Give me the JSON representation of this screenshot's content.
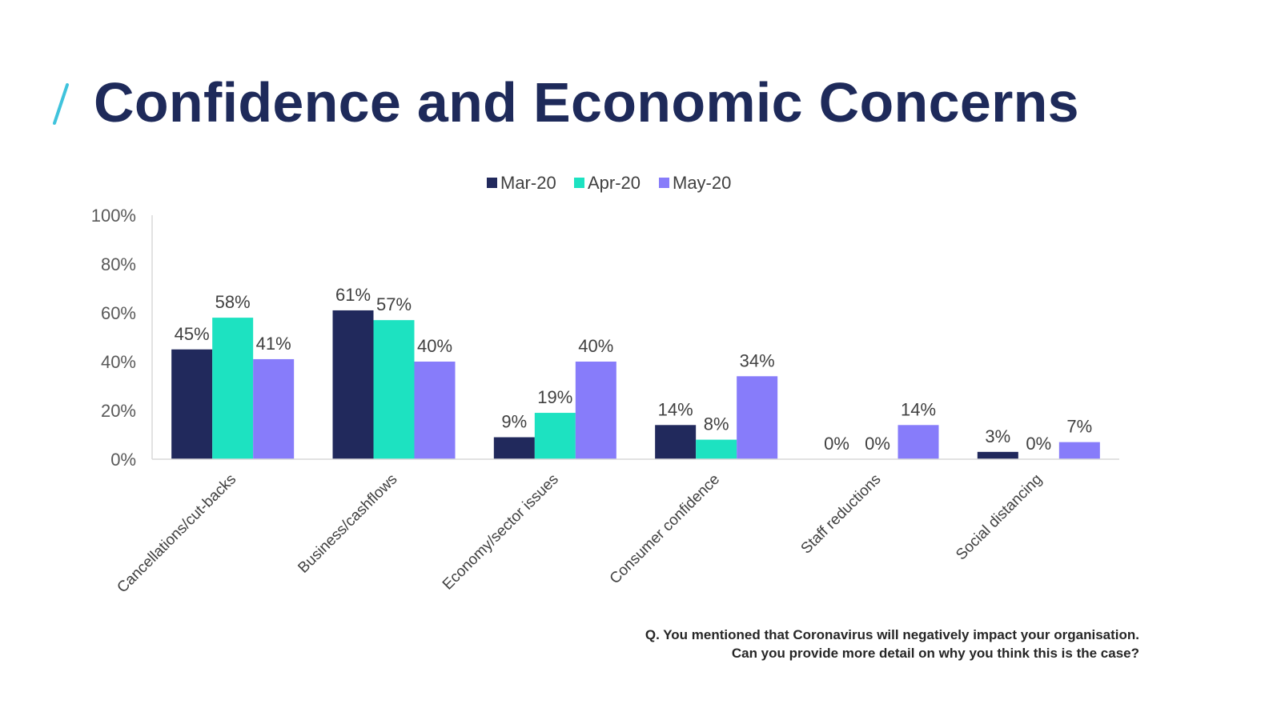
{
  "title": "Confidence and Economic Concerns",
  "footnote": {
    "line1": "Q. You mentioned that Coronavirus will negatively impact your organisation.",
    "line2": "Can you provide more detail on why you think this is the case?"
  },
  "colors": {
    "title": "#1e2a5a",
    "accent": "#3fc3dc"
  },
  "chart_data": {
    "type": "bar",
    "title": "",
    "xlabel": "",
    "ylabel": "",
    "ylim": [
      0,
      100
    ],
    "yticks": [
      "0%",
      "20%",
      "40%",
      "60%",
      "80%",
      "100%"
    ],
    "ytick_values": [
      0,
      20,
      40,
      60,
      80,
      100
    ],
    "legend_position": "top",
    "categories": [
      "Cancellations/cut-backs",
      "Business/cashflows",
      "Economy/sector issues",
      "Consumer confidence",
      "Staff reductions",
      "Social distancing"
    ],
    "series": [
      {
        "name": "Mar-20",
        "color": "#21295c",
        "values": [
          45,
          61,
          9,
          14,
          0,
          3
        ],
        "labels": [
          "45%",
          "61%",
          "9%",
          "14%",
          "0%",
          "3%"
        ]
      },
      {
        "name": "Apr-20",
        "color": "#1de2c1",
        "values": [
          58,
          57,
          19,
          8,
          0,
          0
        ],
        "labels": [
          "58%",
          "57%",
          "19%",
          "8%",
          "0%",
          "0%"
        ]
      },
      {
        "name": "May-20",
        "color": "#877cfa",
        "values": [
          41,
          40,
          40,
          34,
          14,
          7
        ],
        "labels": [
          "41%",
          "40%",
          "40%",
          "34%",
          "14%",
          "7%"
        ]
      }
    ]
  }
}
